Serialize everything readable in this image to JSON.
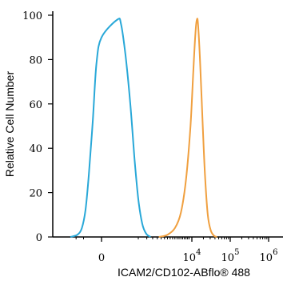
{
  "chart_data": {
    "type": "line",
    "title": "",
    "xlabel": "ICAM2/CD102-ABflo® 488",
    "ylabel": "Relative Cell Number",
    "x_scale": "biexponential",
    "x_tick_labels": [
      {
        "value": 0,
        "base": "0",
        "exp": ""
      },
      {
        "value": 10000,
        "base": "10",
        "exp": "4"
      },
      {
        "value": 100000,
        "base": "10",
        "exp": "5"
      },
      {
        "value": 1000000,
        "base": "10",
        "exp": "6"
      }
    ],
    "ylim": [
      0,
      100
    ],
    "y_ticks": [
      0,
      20,
      40,
      60,
      80,
      100
    ],
    "grid": false,
    "series": [
      {
        "color": "#29a8d8",
        "points": [
          [
            -1500,
            0
          ],
          [
            -900,
            1
          ],
          [
            -600,
            4
          ],
          [
            -400,
            12
          ],
          [
            -250,
            28
          ],
          [
            -120,
            52
          ],
          [
            -40,
            78
          ],
          [
            0,
            90
          ],
          [
            30,
            98
          ],
          [
            60,
            96
          ],
          [
            120,
            82
          ],
          [
            220,
            60
          ],
          [
            350,
            35
          ],
          [
            500,
            17
          ],
          [
            700,
            6
          ],
          [
            950,
            1.5
          ],
          [
            1300,
            0
          ]
        ]
      },
      {
        "color": "#f0a040",
        "points": [
          [
            2200,
            0
          ],
          [
            3500,
            1
          ],
          [
            5000,
            4
          ],
          [
            6500,
            11
          ],
          [
            8000,
            26
          ],
          [
            9500,
            50
          ],
          [
            11000,
            76
          ],
          [
            12500,
            93
          ],
          [
            13500,
            98
          ],
          [
            14500,
            96
          ],
          [
            16500,
            78
          ],
          [
            19000,
            52
          ],
          [
            22000,
            28
          ],
          [
            26000,
            10
          ],
          [
            31000,
            3
          ],
          [
            38000,
            0.5
          ],
          [
            45000,
            0
          ]
        ]
      }
    ]
  }
}
